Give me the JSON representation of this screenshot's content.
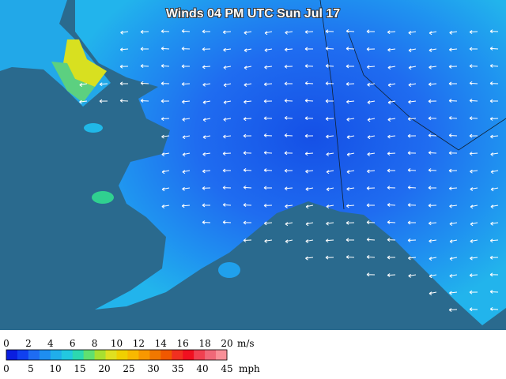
{
  "header": {
    "title": "Winds 04 PM UTC Sun Jul 17"
  },
  "legend": {
    "ms_ticks": [
      "0",
      "2",
      "4",
      "6",
      "8",
      "10",
      "12",
      "14",
      "16",
      "18",
      "20"
    ],
    "ms_unit": "m/s",
    "mph_ticks": [
      "0",
      "5",
      "10",
      "15",
      "20",
      "25",
      "30",
      "35",
      "40",
      "45"
    ],
    "mph_unit": "mph"
  }
}
